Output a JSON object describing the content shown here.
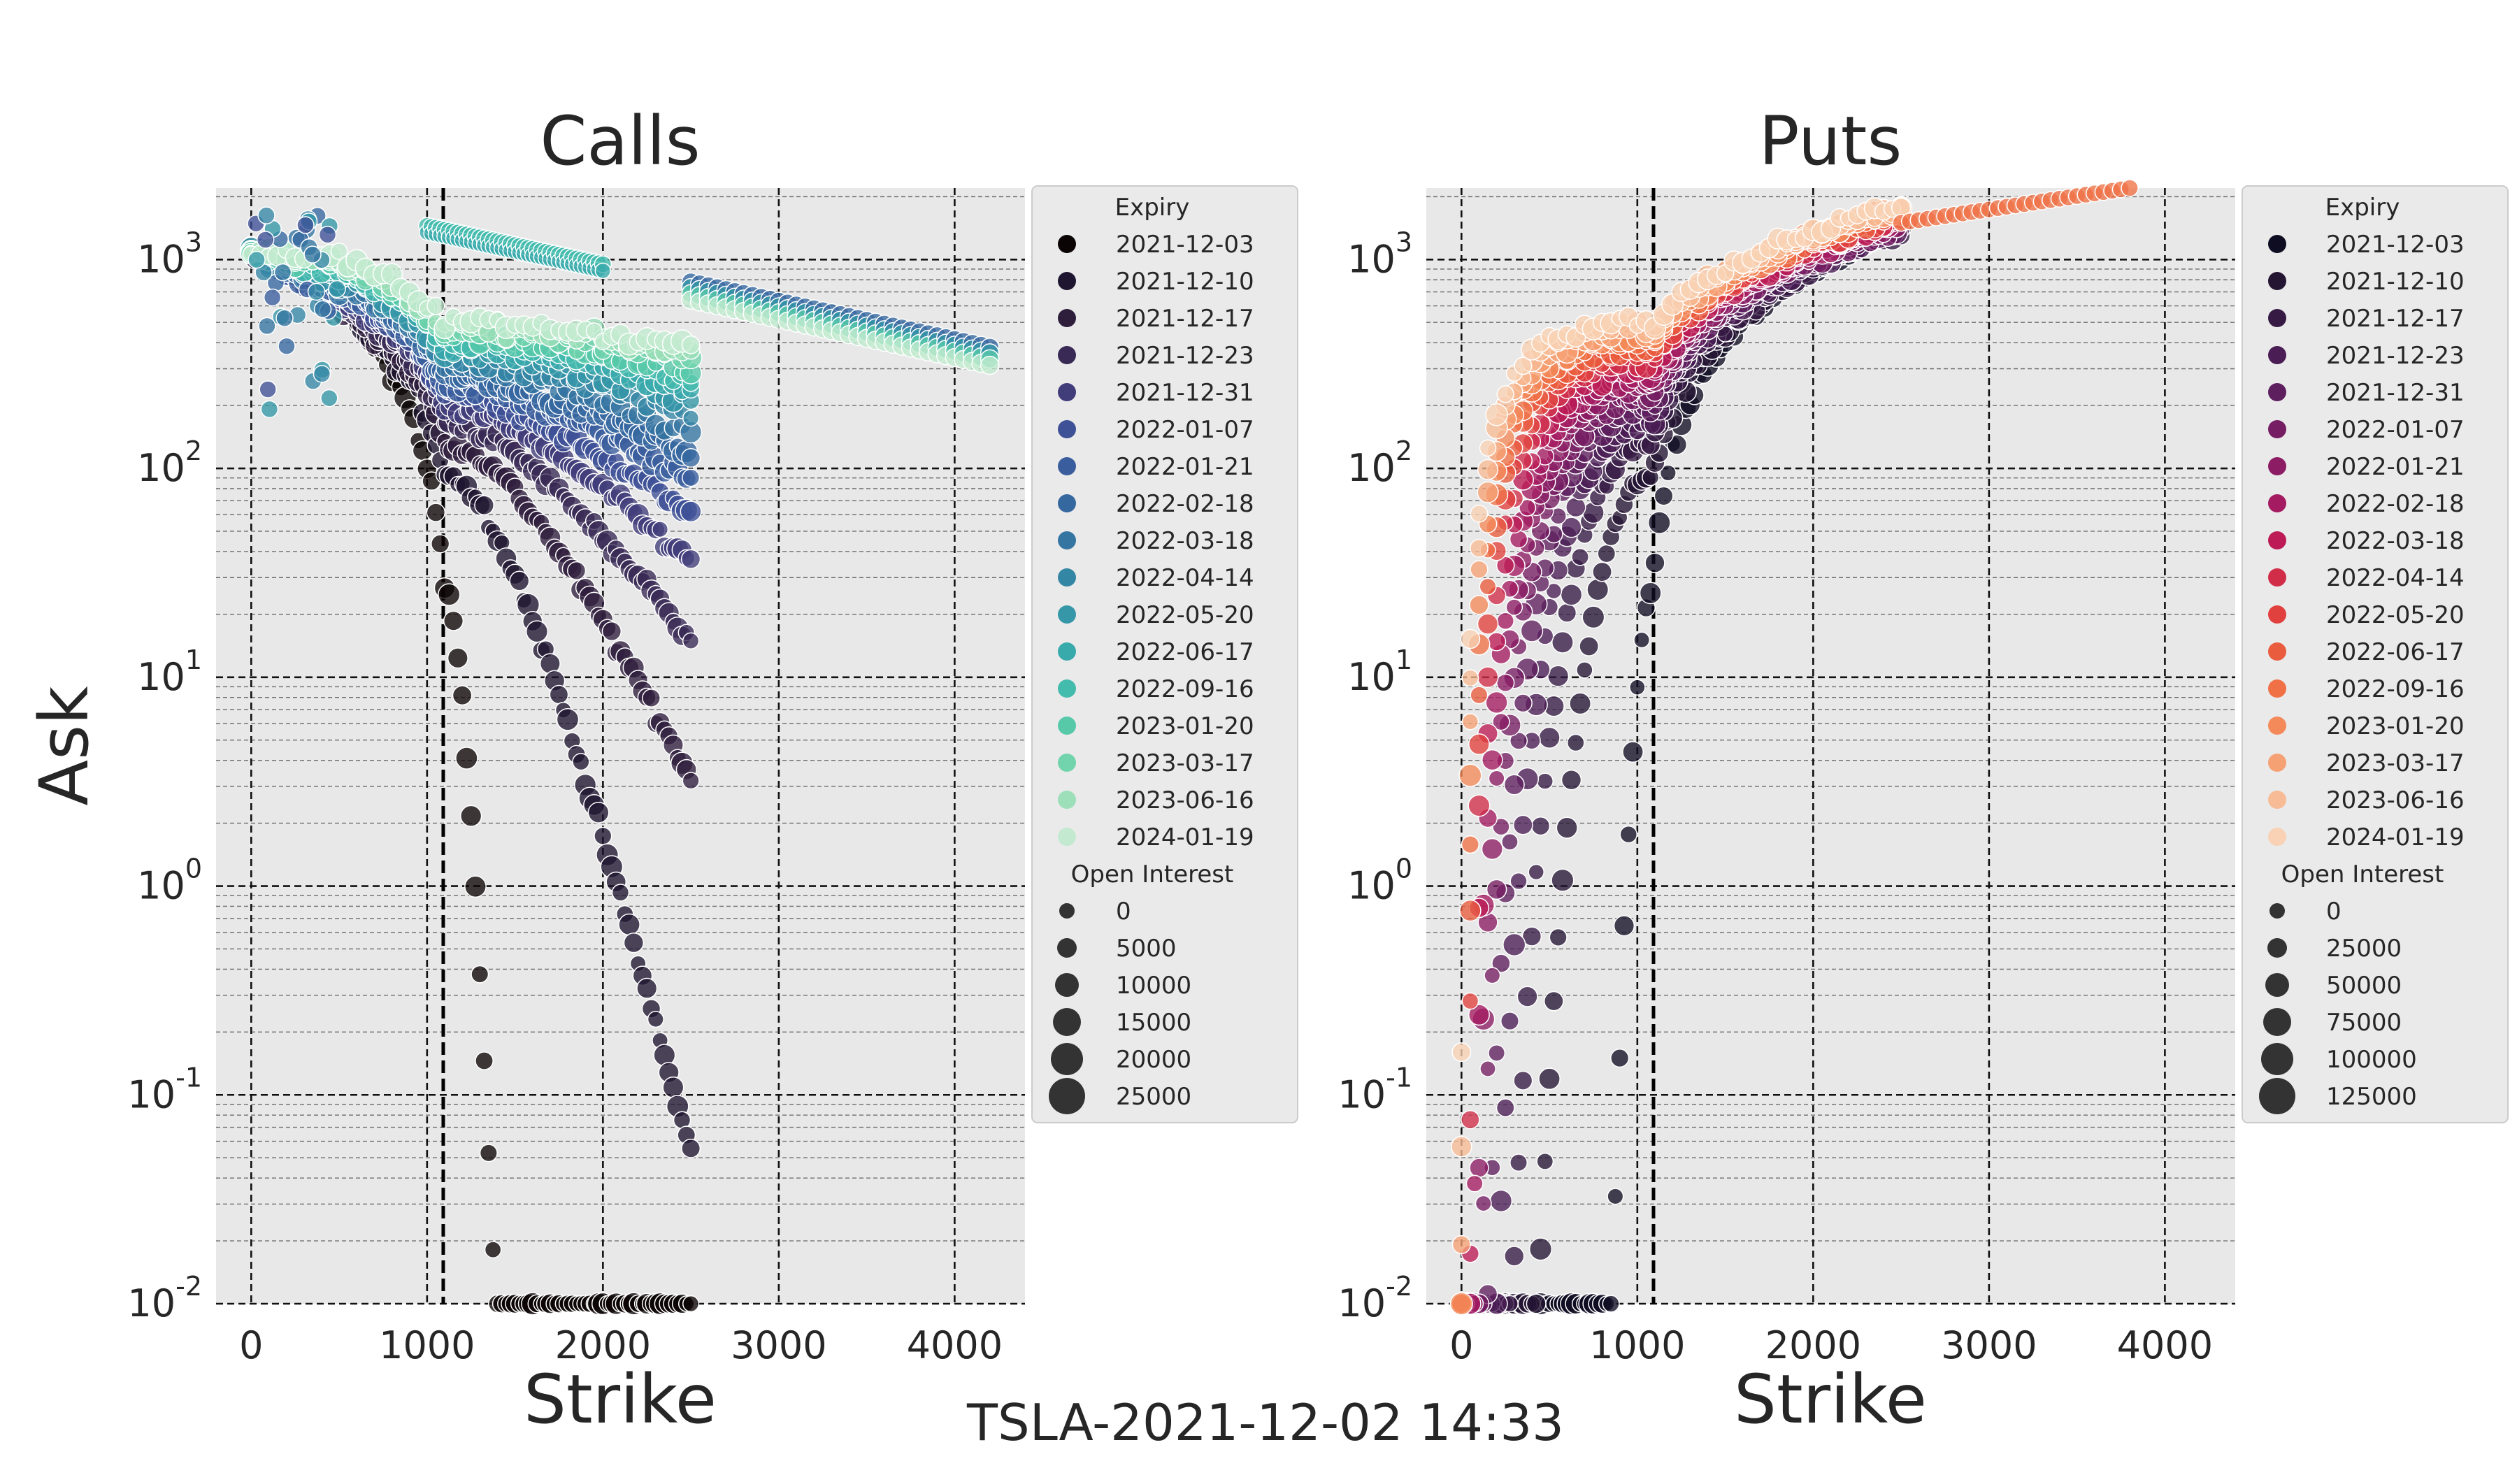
{
  "figure": {
    "ylabel": "Ask",
    "footer": "TSLA-2021-12-02 14:33",
    "x_ticks": [
      0,
      1000,
      2000,
      3000,
      4000
    ],
    "y_tick_exponents": [
      -2,
      -1,
      0,
      1,
      2,
      3
    ],
    "spot_price": 1092,
    "reference_line": 1000
  },
  "chart_data": [
    {
      "type": "scatter",
      "title": "Calls",
      "xlabel": "Strike",
      "ylabel": "Ask",
      "xlim": [
        -200,
        4400
      ],
      "ylim": [
        0.01,
        2200
      ],
      "yscale": "log",
      "grid": true,
      "legend": {
        "position": "outside-right",
        "expiry_title": "Expiry",
        "size_title": "Open Interest",
        "expiries": [
          "2021-12-03",
          "2021-12-10",
          "2021-12-17",
          "2021-12-23",
          "2021-12-31",
          "2022-01-07",
          "2022-01-21",
          "2022-02-18",
          "2022-03-18",
          "2022-04-14",
          "2022-05-20",
          "2022-06-17",
          "2022-09-16",
          "2023-01-20",
          "2023-03-17",
          "2023-06-16",
          "2024-01-19"
        ],
        "colors": [
          "#0b0405",
          "#1e1530",
          "#2e1e3c",
          "#382a54",
          "#413d7b",
          "#3e5096",
          "#3a5e9d",
          "#3668a0",
          "#3575a2",
          "#3486a5",
          "#3597a8",
          "#38aaac",
          "#43bbad",
          "#57c9a9",
          "#71d4ad",
          "#9cdfb9",
          "#c3ead0"
        ],
        "sizes": [
          "0",
          "5000",
          "10000",
          "15000",
          "20000",
          "25000"
        ]
      },
      "series_note": "one curve per expiry; ask decreasing with strike",
      "series_shape": {
        "2021-12-03": {
          "x_range": [
            0,
            2500
          ],
          "ask_at_0": 1092,
          "ask_at_1300": 1.0,
          "ask_at_2500": 0.01
        },
        "2024-01-19": {
          "x_range": [
            0,
            2500
          ],
          "ask_at_0": 1150,
          "ask_at_1000": 450,
          "ask_at_2500": 160
        }
      },
      "outliers": [
        {
          "x_range": [
            1000,
            2000
          ],
          "ask_range": [
            1450,
            950
          ]
        },
        {
          "x_range": [
            2500,
            4200
          ],
          "ask_range": [
            780,
            380
          ]
        }
      ]
    },
    {
      "type": "scatter",
      "title": "Puts",
      "xlabel": "Strike",
      "ylabel": "Ask",
      "xlim": [
        -200,
        4400
      ],
      "ylim": [
        0.01,
        2200
      ],
      "yscale": "log",
      "grid": true,
      "legend": {
        "position": "outside-right",
        "expiry_title": "Expiry",
        "size_title": "Open Interest",
        "expiries": [
          "2021-12-03",
          "2021-12-10",
          "2021-12-17",
          "2021-12-23",
          "2021-12-31",
          "2022-01-07",
          "2022-01-21",
          "2022-02-18",
          "2022-03-18",
          "2022-04-14",
          "2022-05-20",
          "2022-06-17",
          "2022-09-16",
          "2023-01-20",
          "2023-03-17",
          "2023-06-16",
          "2024-01-19"
        ],
        "colors": [
          "#0f0d22",
          "#241533",
          "#361a44",
          "#4a1d54",
          "#5e1f5e",
          "#761e63",
          "#8c1c64",
          "#a41b61",
          "#bc1b55",
          "#d12d49",
          "#e1413e",
          "#ea5c3e",
          "#f07145",
          "#f48a5a",
          "#f6a174",
          "#f7bb95",
          "#f9d2b5"
        ],
        "sizes": [
          "0",
          "25000",
          "50000",
          "75000",
          "100000",
          "125000"
        ]
      },
      "series_note": "one curve per expiry; ask increasing with strike",
      "series_shape": {
        "2021-12-03": {
          "x_range": [
            800,
            1100
          ],
          "ask_at_800": 0.5,
          "ask_at_1100": 60
        },
        "2024-01-19": {
          "x_range": [
            0,
            2500
          ],
          "ask_at_0": 0.5,
          "ask_at_1000": 400,
          "ask_at_2500": 1500
        }
      },
      "outliers": [
        {
          "x_range": [
            2500,
            3800
          ],
          "ask_range": [
            1500,
            2200
          ]
        }
      ]
    }
  ]
}
